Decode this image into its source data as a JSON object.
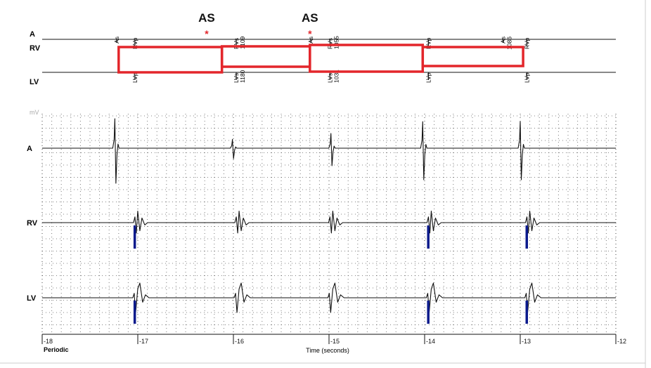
{
  "chart_data": {
    "type": "line",
    "xlabel": "Time (seconds)",
    "footer_label": "Periodic",
    "unit_label": "mV",
    "xlim": [
      -18,
      -12
    ],
    "x_ticks": [
      -18,
      -17,
      -16,
      -15,
      -14,
      -13,
      -12
    ],
    "x_tick_labels": [
      "-18",
      "-17",
      "-16",
      "-15",
      "-14",
      "-13",
      "-12"
    ],
    "grid": true,
    "annotation_channels": [
      {
        "name": "A",
        "label": "A"
      },
      {
        "name": "RV",
        "label": "RV"
      },
      {
        "name": "LV",
        "label": "LV"
      }
    ],
    "markers": {
      "A": [
        {
          "t": -17.22,
          "text": "As",
          "value": ""
        },
        {
          "t": -15.19,
          "text": "As",
          "value": ""
        },
        {
          "t": -13.18,
          "text": "As",
          "value": "1086"
        }
      ],
      "RV": [
        {
          "t": -17.03,
          "text": "RVp",
          "value": ""
        },
        {
          "t": -15.97,
          "text": "RVs",
          "value": "1109"
        },
        {
          "t": -14.99,
          "text": "RVs",
          "value": "1055"
        },
        {
          "t": -13.96,
          "text": "RVp",
          "value": ""
        },
        {
          "t": -12.93,
          "text": "RVp",
          "value": ""
        }
      ],
      "LV": [
        {
          "t": -17.03,
          "text": "LVp",
          "value": ""
        },
        {
          "t": -15.97,
          "text": "LVs",
          "value": "1180"
        },
        {
          "t": -14.99,
          "text": "LVs",
          "value": "1031"
        },
        {
          "t": -13.96,
          "text": "LVp",
          "value": ""
        },
        {
          "t": -12.93,
          "text": "LVp",
          "value": ""
        }
      ]
    },
    "annotations": [
      {
        "text": "AS",
        "t": -16.28
      },
      {
        "text": "AS",
        "t": -15.2
      }
    ],
    "highlight_boxes": [
      {
        "t_start": -17.2,
        "t_end": -16.12
      },
      {
        "t_start": -16.12,
        "t_end": -15.2
      },
      {
        "t_start": -15.2,
        "t_end": -14.02
      },
      {
        "t_start": -14.02,
        "t_end": -12.97
      }
    ],
    "series": [
      {
        "name": "A",
        "label": "A",
        "deflections": [
          {
            "t": -17.24,
            "amp": 1.0
          },
          {
            "t": -16.01,
            "amp": 0.3
          },
          {
            "t": -14.98,
            "amp": 0.5
          },
          {
            "t": -14.02,
            "amp": 0.9
          },
          {
            "t": -13.0,
            "amp": 0.9
          }
        ]
      },
      {
        "name": "RV",
        "label": "RV",
        "deflections": [
          {
            "t": -17.03,
            "amp": 0.55,
            "paced": true
          },
          {
            "t": -15.97,
            "amp": 0.55,
            "paced": false
          },
          {
            "t": -14.99,
            "amp": 0.55,
            "paced": false
          },
          {
            "t": -13.96,
            "amp": 0.55,
            "paced": true
          },
          {
            "t": -12.93,
            "amp": 0.55,
            "paced": true
          }
        ]
      },
      {
        "name": "LV",
        "label": "LV",
        "deflections": [
          {
            "t": -17.03,
            "amp": 0.75,
            "paced": true
          },
          {
            "t": -15.97,
            "amp": 0.75,
            "paced": false
          },
          {
            "t": -14.99,
            "amp": 0.75,
            "paced": false
          },
          {
            "t": -13.96,
            "amp": 0.75,
            "paced": true
          },
          {
            "t": -12.93,
            "amp": 0.75,
            "paced": true
          }
        ]
      }
    ]
  },
  "colors": {
    "trace": "#111111",
    "pace": "#0b1a8c",
    "highlight": "#e3262b",
    "star": "#e3262b",
    "grid": "#333333",
    "unit": "#aaaaaa"
  }
}
